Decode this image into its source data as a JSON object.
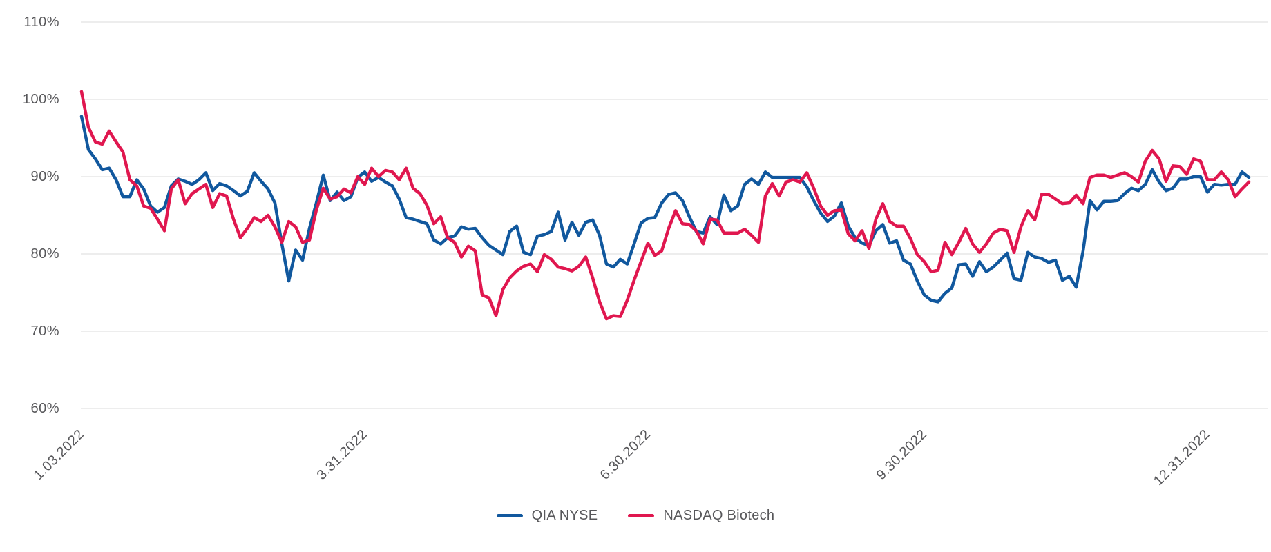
{
  "chart_data": {
    "type": "line",
    "title": "",
    "grid": "horizontal",
    "legend_position": "bottom-center",
    "colors": {
      "gridline": "#e7e7e7",
      "axis_text": "#57575a"
    },
    "y_axis": {
      "unit": "%",
      "min": 60,
      "max": 110,
      "tick_step": 10,
      "tick_labels": [
        "110%",
        "100%",
        "90%",
        "80%",
        "70%",
        "60%"
      ],
      "tick_values": [
        110,
        100,
        90,
        80,
        70,
        60
      ]
    },
    "x_axis": {
      "tick_labels": [
        "1.03.2022",
        "3.31.2022",
        "6.30.2022",
        "9.30.2022",
        "12.31.2022"
      ],
      "tick_indices": [
        0,
        41,
        82,
        122,
        163
      ],
      "total_points": 170
    },
    "series": [
      {
        "name": "QIA NYSE",
        "color": "#11589e",
        "values": [
          97.8,
          93.5,
          92.3,
          90.9,
          91.1,
          89.6,
          87.4,
          87.4,
          89.6,
          88.4,
          86.2,
          85.4,
          86.0,
          88.8,
          89.7,
          89.4,
          89.0,
          89.6,
          90.5,
          88.2,
          89.1,
          88.8,
          88.2,
          87.5,
          88.1,
          90.5,
          89.4,
          88.4,
          86.6,
          81.3,
          76.5,
          80.5,
          79.2,
          83.3,
          86.6,
          90.2,
          86.9,
          88.0,
          86.9,
          87.4,
          89.9,
          90.6,
          89.4,
          89.9,
          89.3,
          88.8,
          87.1,
          84.7,
          84.5,
          84.2,
          83.9,
          81.8,
          81.3,
          82.1,
          82.3,
          83.5,
          83.2,
          83.3,
          82.1,
          81.1,
          80.5,
          79.9,
          82.9,
          83.6,
          80.2,
          79.9,
          82.3,
          82.5,
          82.9,
          85.4,
          81.8,
          84.1,
          82.4,
          84.1,
          84.4,
          82.4,
          78.7,
          78.3,
          79.3,
          78.7,
          81.3,
          84.0,
          84.6,
          84.7,
          86.6,
          87.7,
          87.9,
          86.9,
          84.8,
          82.9,
          82.7,
          84.8,
          83.8,
          87.6,
          85.6,
          86.2,
          89.0,
          89.7,
          89.0,
          90.6,
          89.9,
          89.9,
          89.9,
          89.9,
          89.9,
          88.7,
          86.9,
          85.3,
          84.2,
          84.9,
          86.6,
          83.6,
          82.1,
          81.4,
          81.1,
          83.0,
          83.8,
          81.4,
          81.7,
          79.2,
          78.7,
          76.5,
          74.7,
          74.0,
          73.8,
          74.9,
          75.6,
          78.6,
          78.7,
          77.1,
          79.0,
          77.7,
          78.3,
          79.2,
          80.1,
          76.8,
          76.6,
          80.2,
          79.6,
          79.4,
          78.9,
          79.2,
          76.6,
          77.1,
          75.7,
          80.4,
          86.9,
          85.7,
          86.8,
          86.8,
          86.9,
          87.8,
          88.5,
          88.2,
          89.0,
          90.9,
          89.3,
          88.2,
          88.5,
          89.7,
          89.7,
          90.0,
          90.0,
          88.0,
          89.0,
          88.9,
          89.0,
          89.0,
          90.6,
          89.9
        ]
      },
      {
        "name": "NASDAQ Biotech",
        "color": "#e0174f",
        "values": [
          101.0,
          96.4,
          94.5,
          94.2,
          95.9,
          94.5,
          93.2,
          89.6,
          88.8,
          86.2,
          85.9,
          84.5,
          83.0,
          88.4,
          89.6,
          86.5,
          87.8,
          88.4,
          89.0,
          86.0,
          87.8,
          87.5,
          84.5,
          82.1,
          83.3,
          84.7,
          84.2,
          85.0,
          83.5,
          81.5,
          84.2,
          83.5,
          81.5,
          81.8,
          85.7,
          88.5,
          87.1,
          87.4,
          88.4,
          87.9,
          90.0,
          89.0,
          91.1,
          90.0,
          90.8,
          90.6,
          89.6,
          91.1,
          88.5,
          87.8,
          86.3,
          83.9,
          84.8,
          82.1,
          81.5,
          79.6,
          81.0,
          80.4,
          74.7,
          74.3,
          72.0,
          75.4,
          76.9,
          77.8,
          78.4,
          78.7,
          77.7,
          79.9,
          79.3,
          78.3,
          78.1,
          77.8,
          78.4,
          79.6,
          76.9,
          73.8,
          71.6,
          72.0,
          71.9,
          74.0,
          76.6,
          79.0,
          81.4,
          79.8,
          80.4,
          83.3,
          85.6,
          83.9,
          83.8,
          83.0,
          81.3,
          84.5,
          84.4,
          82.7,
          82.7,
          82.7,
          83.2,
          82.4,
          81.5,
          87.5,
          89.1,
          87.5,
          89.3,
          89.6,
          89.3,
          90.5,
          88.5,
          86.2,
          85.0,
          85.6,
          85.7,
          82.6,
          81.7,
          83.0,
          80.7,
          84.5,
          86.5,
          84.2,
          83.6,
          83.6,
          82.0,
          79.9,
          79.0,
          77.7,
          77.9,
          81.5,
          79.9,
          81.5,
          83.3,
          81.3,
          80.2,
          81.3,
          82.7,
          83.2,
          83.0,
          80.2,
          83.5,
          85.6,
          84.4,
          87.7,
          87.7,
          87.1,
          86.5,
          86.6,
          87.6,
          86.5,
          89.9,
          90.2,
          90.2,
          89.9,
          90.2,
          90.5,
          90.0,
          89.3,
          92.0,
          93.4,
          92.3,
          89.4,
          91.4,
          91.3,
          90.3,
          92.3,
          92.0,
          89.6,
          89.6,
          90.6,
          89.6,
          87.4,
          88.4,
          89.3
        ]
      }
    ]
  }
}
